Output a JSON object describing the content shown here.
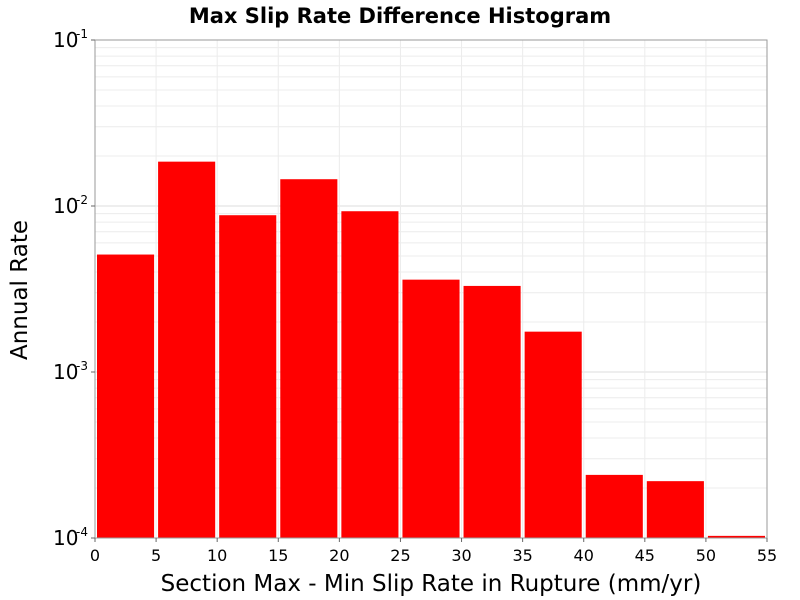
{
  "chart_data": {
    "type": "bar",
    "title": "Max Slip Rate Difference Histogram",
    "xlabel": "Section Max - Min Slip Rate in Rupture (mm/yr)",
    "ylabel": "Annual Rate",
    "xlim": [
      0,
      55
    ],
    "ylim": [
      0.0001,
      0.1
    ],
    "yscale": "log",
    "grid": true,
    "bar_color": "#ff0000",
    "x_ticks": [
      "0",
      "5",
      "10",
      "15",
      "20",
      "25",
      "30",
      "35",
      "40",
      "45",
      "50",
      "55"
    ],
    "y_ticks": [
      {
        "base": "10",
        "exp": "-1"
      },
      {
        "base": "10",
        "exp": "-2"
      },
      {
        "base": "10",
        "exp": "-3"
      },
      {
        "base": "10",
        "exp": "-4"
      }
    ],
    "bins": [
      {
        "x0": 0,
        "x1": 5,
        "value": 0.0051
      },
      {
        "x0": 5,
        "x1": 10,
        "value": 0.0185
      },
      {
        "x0": 10,
        "x1": 15,
        "value": 0.0088
      },
      {
        "x0": 15,
        "x1": 20,
        "value": 0.0145
      },
      {
        "x0": 20,
        "x1": 25,
        "value": 0.0093
      },
      {
        "x0": 25,
        "x1": 30,
        "value": 0.0036
      },
      {
        "x0": 30,
        "x1": 35,
        "value": 0.0033
      },
      {
        "x0": 35,
        "x1": 40,
        "value": 0.00175
      },
      {
        "x0": 40,
        "x1": 45,
        "value": 0.00024
      },
      {
        "x0": 45,
        "x1": 50,
        "value": 0.00022
      },
      {
        "x0": 50,
        "x1": 55,
        "value": 0.000103
      }
    ]
  }
}
